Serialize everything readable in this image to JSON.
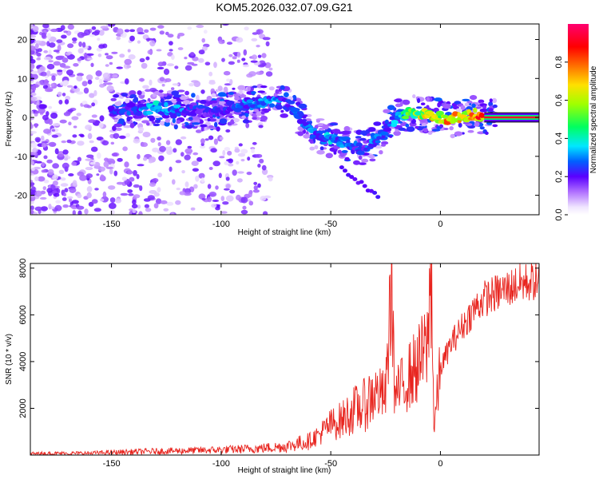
{
  "title": "KOM5.2026.032.07.09.G21",
  "chart_data": [
    {
      "type": "heatmap",
      "xlabel": "Height of straight line (km)",
      "ylabel": "Frequency (Hz)",
      "xlim": [
        -187,
        45
      ],
      "ylim": [
        -25,
        24
      ],
      "xticks": [
        -150,
        -100,
        -50,
        0
      ],
      "yticks": [
        20,
        10,
        0,
        -10,
        -20
      ],
      "colorbar": {
        "label": "Normalized spectral amplitude",
        "range": [
          0,
          1
        ],
        "ticks": [
          0.0,
          0.2,
          0.4,
          0.6,
          0.8
        ]
      },
      "ridge": {
        "x": [
          -150,
          -140,
          -130,
          -120,
          -110,
          -100,
          -95,
          -85,
          -75,
          -70,
          -65,
          -60,
          -55,
          -50,
          -45,
          -40,
          -35,
          -30,
          -25,
          -20,
          -15,
          -10,
          -5,
          0,
          5,
          10,
          15,
          20,
          30,
          45
        ],
        "freq": [
          1.5,
          2,
          2.5,
          2,
          1.5,
          1.5,
          3,
          3.5,
          4,
          3.5,
          1,
          -3,
          -5,
          -5.5,
          -6,
          -7.5,
          -8,
          -6.5,
          -3,
          0,
          1,
          1,
          0.5,
          0,
          -0.5,
          0,
          1,
          0,
          0,
          0
        ],
        "amplitude": [
          0.25,
          0.3,
          0.4,
          0.35,
          0.3,
          0.25,
          0.3,
          0.35,
          0.35,
          0.3,
          0.3,
          0.35,
          0.35,
          0.4,
          0.35,
          0.3,
          0.3,
          0.35,
          0.3,
          0.4,
          0.6,
          0.7,
          0.8,
          0.8,
          0.85,
          0.9,
          0.9,
          0.95,
          1.0,
          1.0
        ]
      }
    },
    {
      "type": "line",
      "xlabel": "Height of straight line (km)",
      "ylabel": "SNR (10 * v/v)",
      "xlim": [
        -187,
        45
      ],
      "ylim": [
        0,
        8200
      ],
      "xticks": [
        -150,
        -100,
        -50,
        0
      ],
      "yticks": [
        2000,
        4000,
        6000,
        8000
      ],
      "series": [
        {
          "name": "SNR",
          "color": "#e8241e",
          "x": [
            -187,
            -160,
            -140,
            -120,
            -100,
            -90,
            -80,
            -70,
            -60,
            -55,
            -50,
            -45,
            -40,
            -35,
            -30,
            -25,
            -22,
            -21,
            -20,
            -15,
            -10,
            -6,
            -4,
            -3,
            0,
            5,
            10,
            15,
            20,
            25,
            30,
            35,
            40,
            45
          ],
          "y": [
            60,
            80,
            140,
            180,
            220,
            260,
            300,
            380,
            600,
            900,
            1300,
            1500,
            1900,
            2100,
            2700,
            2500,
            8100,
            2600,
            2600,
            3300,
            3900,
            4600,
            8150,
            1100,
            3700,
            4800,
            5500,
            6200,
            6700,
            6900,
            7100,
            7300,
            7400,
            7500
          ]
        }
      ]
    }
  ]
}
